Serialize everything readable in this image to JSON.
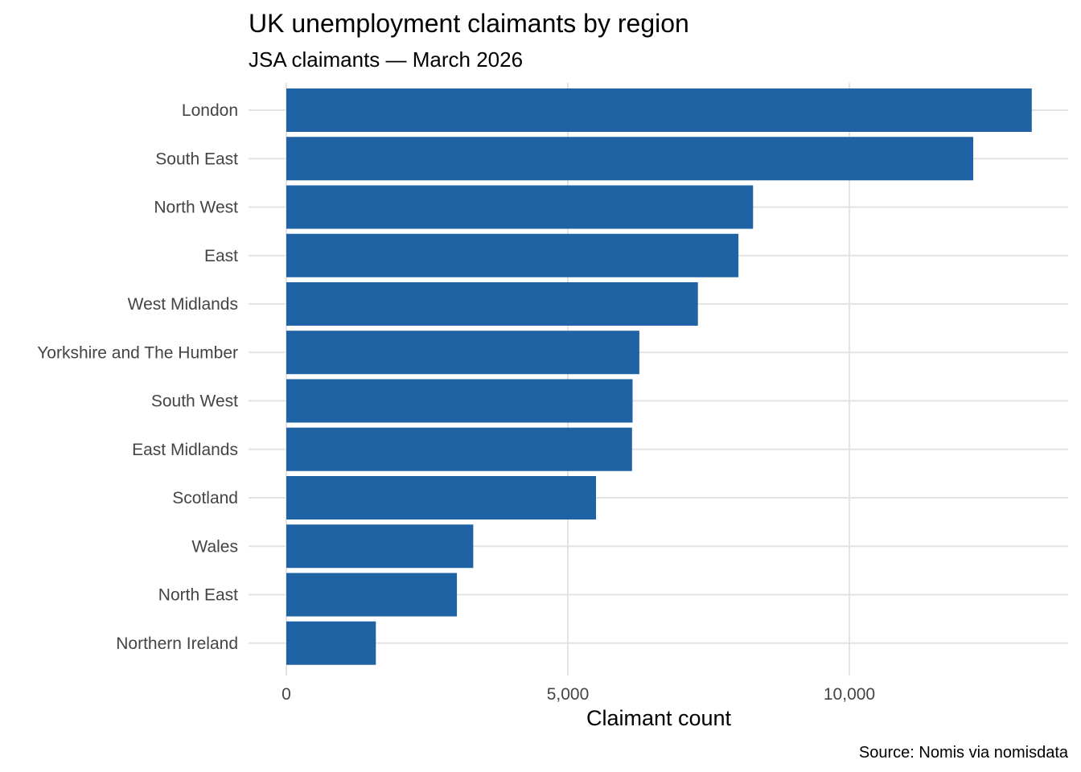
{
  "chart_data": {
    "type": "bar",
    "orientation": "horizontal",
    "title": "UK unemployment claimants by region",
    "subtitle": "JSA claimants — March 2026",
    "xlabel": "Claimant count",
    "ylabel": "",
    "caption": "Source: Nomis via nomisdata",
    "categories": [
      "London",
      "South East",
      "North West",
      "East",
      "West Midlands",
      "Yorkshire and The Humber",
      "South West",
      "East Midlands",
      "Scotland",
      "Wales",
      "North East",
      "Northern Ireland"
    ],
    "values": [
      13240,
      12200,
      8290,
      8030,
      7310,
      6270,
      6150,
      6140,
      5500,
      3320,
      3030,
      1590
    ],
    "xlim": [
      0,
      13900
    ],
    "xticks": [
      0,
      5000,
      10000
    ],
    "xtick_labels": [
      "0",
      "5,000",
      "10,000"
    ],
    "grid": true,
    "legend": "none",
    "bar_color": "#1f63a4"
  }
}
